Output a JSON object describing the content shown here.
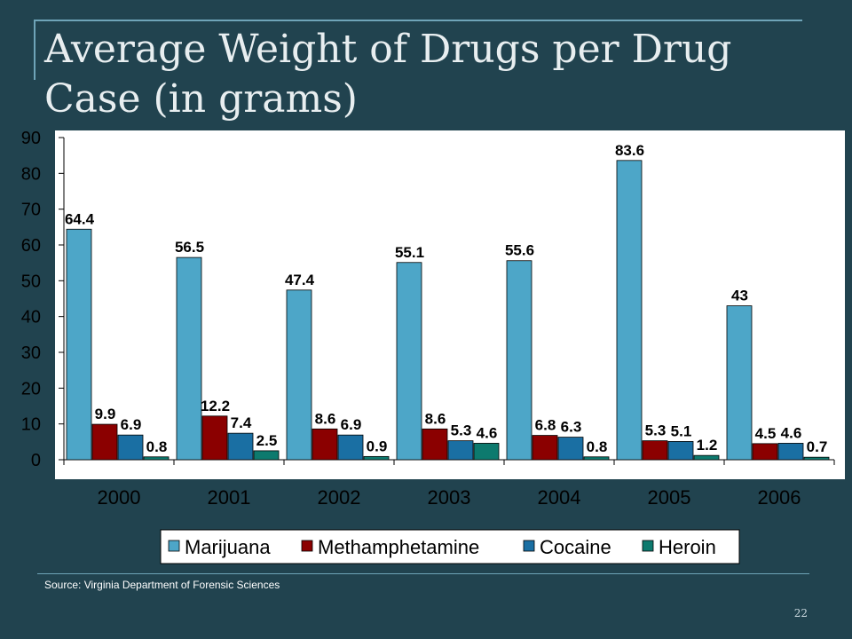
{
  "slide": {
    "title": "Average Weight of Drugs per Drug Case (in grams)",
    "source": "Source: Virginia Department of Forensic Sciences",
    "page_number": "22"
  },
  "colors": {
    "background": "#21434f",
    "plot_background": "#ffffff",
    "marijuana": "#4da6c8",
    "methamphetamine": "#8b0000",
    "cocaine": "#1a6fa3",
    "heroin": "#0d7a6e"
  },
  "chart_data": {
    "type": "bar",
    "categories": [
      "2000",
      "2001",
      "2002",
      "2003",
      "2004",
      "2005",
      "2006"
    ],
    "series": [
      {
        "name": "Marijuana",
        "color": "#4da6c8",
        "values": [
          64.4,
          56.5,
          47.4,
          55.1,
          55.6,
          83.6,
          43
        ],
        "labels": [
          "64.4",
          "56.5",
          "47.4",
          "55.1",
          "55.6",
          "83.6",
          "43"
        ]
      },
      {
        "name": "Methamphetamine",
        "color": "#8b0000",
        "values": [
          9.9,
          12.2,
          8.6,
          8.6,
          6.8,
          5.3,
          4.5
        ],
        "labels": [
          "9.9",
          "12.2",
          "8.6",
          "8.6",
          "6.8",
          "5.3",
          "4.5"
        ]
      },
      {
        "name": "Cocaine",
        "color": "#1a6fa3",
        "values": [
          6.9,
          7.4,
          6.9,
          5.3,
          6.3,
          5.1,
          4.6
        ],
        "labels": [
          "6.9",
          "7.4",
          "6.9",
          "5.3",
          "6.3",
          "5.1",
          "4.6"
        ]
      },
      {
        "name": "Heroin",
        "color": "#0d7a6e",
        "values": [
          0.8,
          2.5,
          0.9,
          4.6,
          0.8,
          1.2,
          0.7
        ],
        "labels": [
          "0.8",
          "2.5",
          "0.9",
          "4.6",
          "0.8",
          "1.2",
          "0.7"
        ]
      }
    ],
    "y_ticks": [
      "0",
      "10",
      "20",
      "30",
      "40",
      "50",
      "60",
      "70",
      "80",
      "90"
    ],
    "ylim": [
      0,
      90
    ],
    "grid": false,
    "legend_position": "bottom"
  }
}
